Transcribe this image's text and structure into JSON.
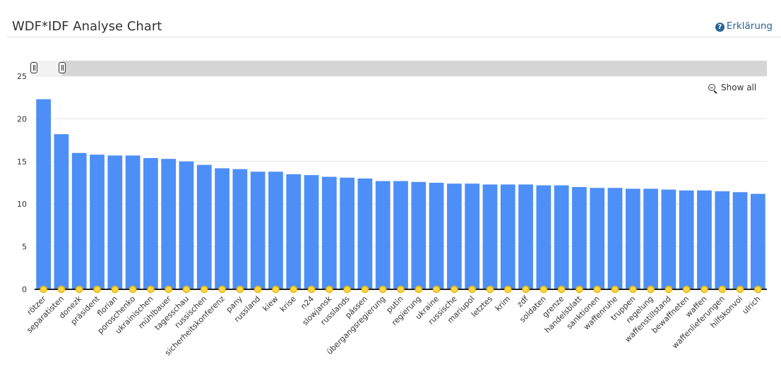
{
  "header": {
    "title": "WDF*IDF Analyse Chart",
    "help_label": "Erklärung"
  },
  "toolbar": {
    "show_all_label": "Show all"
  },
  "colors": {
    "bar": "#4d8ff7",
    "marker_fill": "#ffd84a",
    "marker_stroke": "#e6b800",
    "baseline": "#222222",
    "grid": "#e6e6e6"
  },
  "chart_data": {
    "type": "bar",
    "categories": [
      "rötzer",
      "separatisten",
      "donezk",
      "präsident",
      "florian",
      "poroschenko",
      "ukrainischen",
      "mühlbauer",
      "tagesschau",
      "russischen",
      "sicherheitskonferenz",
      "pany",
      "russland",
      "kiew",
      "krise",
      "n24",
      "slowjansk",
      "russlands",
      "pässen",
      "übergangsregierung",
      "putin",
      "regierung",
      "ukraine",
      "russische",
      "mariupol",
      "letztes",
      "krim",
      "zdf",
      "soldaten",
      "grenze",
      "handelsblatt",
      "sanktionen",
      "waffenruhe",
      "truppen",
      "regelung",
      "waffenstillstand",
      "bewaffneten",
      "waffen",
      "waffenlieferungen",
      "hilfskonvoi",
      "ulrich"
    ],
    "values": [
      22.3,
      18.2,
      16.0,
      15.8,
      15.7,
      15.7,
      15.4,
      15.3,
      15.0,
      14.6,
      14.2,
      14.1,
      13.8,
      13.8,
      13.5,
      13.4,
      13.2,
      13.1,
      13.0,
      12.7,
      12.7,
      12.6,
      12.5,
      12.4,
      12.4,
      12.3,
      12.3,
      12.3,
      12.2,
      12.2,
      12.0,
      11.9,
      11.9,
      11.8,
      11.8,
      11.7,
      11.6,
      11.6,
      11.5,
      11.4,
      11.2
    ],
    "ylim": [
      0,
      25
    ],
    "yticks": [
      0,
      5,
      10,
      15,
      20,
      25
    ],
    "grid": true,
    "title": "",
    "xlabel": "",
    "ylabel": ""
  }
}
